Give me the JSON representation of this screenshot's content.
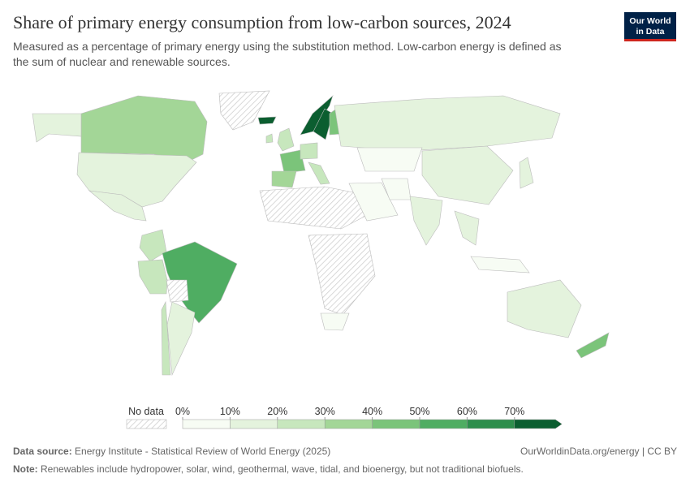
{
  "chart_data": {
    "type": "choropleth",
    "title": "Share of primary energy consumption from low-carbon sources, 2024",
    "subtitle": [
      "Measured as a percentage of primary energy using the substitution method. Low-carbon energy is defined as",
      "the sum of nuclear and renewable sources."
    ],
    "logo": [
      "Our World",
      "in Data"
    ],
    "values": [
      33,
      17,
      17,
      10,
      28,
      22,
      25,
      50,
      null,
      12,
      28,
      null,
      80,
      22,
      72,
      72,
      48,
      47,
      35,
      20,
      20,
      12,
      null,
      null,
      5,
      2,
      2,
      2,
      17,
      10,
      14,
      10,
      8,
      12,
      45
    ],
    "colors": [
      "#f7fcf4",
      "#e4f3dd",
      "#c7e7bd",
      "#a3d697",
      "#7bc47a",
      "#4fad62",
      "#2e8e4c",
      "#0b5e30"
    ],
    "no_data_label": "No data",
    "ticks": [
      {
        "value": 0,
        "label": "0%"
      },
      {
        "value": 10,
        "label": "10%"
      },
      {
        "value": 20,
        "label": "20%"
      },
      {
        "value": 30,
        "label": "30%"
      },
      {
        "value": 40,
        "label": "40%"
      },
      {
        "value": 50,
        "label": "50%"
      },
      {
        "value": 60,
        "label": "60%"
      },
      {
        "value": 70,
        "label": "70%"
      }
    ],
    "source_label": "Data source:",
    "source": "Energy Institute - Statistical Review of World Energy (2025)",
    "credit": "OurWorldinData.org/energy | CC BY",
    "note_label": "Note:",
    "note": "Renewables include hydropower, solar, wind, geothermal, wave, tidal, and bioenergy, but not traditional biofuels."
  }
}
